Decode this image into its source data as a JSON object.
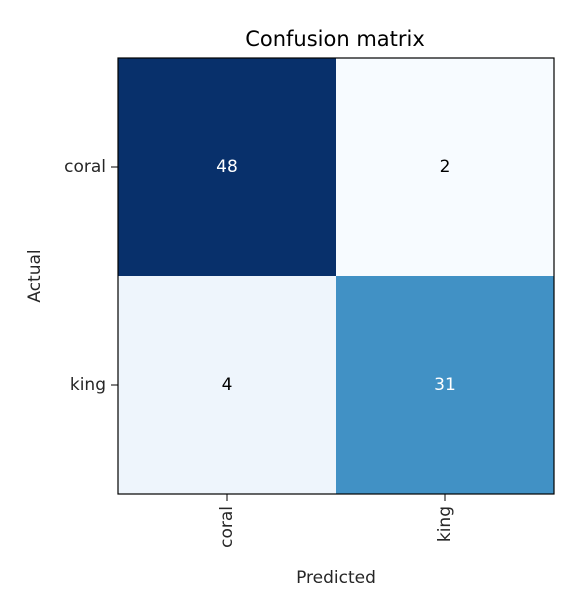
{
  "chart_data": {
    "type": "heatmap",
    "title": "Confusion matrix",
    "xlabel": "Predicted",
    "ylabel": "Actual",
    "x_categories": [
      "coral",
      "king"
    ],
    "y_categories": [
      "coral",
      "king"
    ],
    "values": [
      [
        48,
        2
      ],
      [
        4,
        31
      ]
    ],
    "colormap": "Blues",
    "colors": {
      "max": "#0d2a5c",
      "high": "#3a80ba",
      "low": "#eaf2fb",
      "min": "#f5f9fe",
      "light_text": "#ffffff",
      "dark_text": "#000000"
    },
    "grid": false,
    "colorbar": false
  }
}
